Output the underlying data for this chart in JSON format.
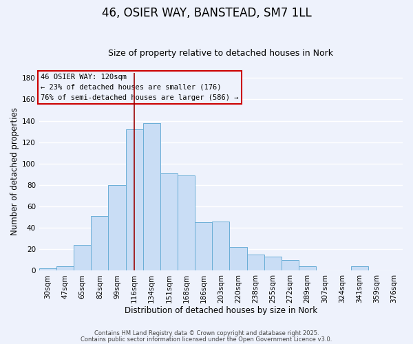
{
  "title": "46, OSIER WAY, BANSTEAD, SM7 1LL",
  "subtitle": "Size of property relative to detached houses in Nork",
  "xlabel": "Distribution of detached houses by size in Nork",
  "ylabel": "Number of detached properties",
  "bar_labels": [
    "30sqm",
    "47sqm",
    "65sqm",
    "82sqm",
    "99sqm",
    "116sqm",
    "134sqm",
    "151sqm",
    "168sqm",
    "186sqm",
    "203sqm",
    "220sqm",
    "238sqm",
    "255sqm",
    "272sqm",
    "289sqm",
    "307sqm",
    "324sqm",
    "341sqm",
    "359sqm",
    "376sqm"
  ],
  "bar_values": [
    2,
    4,
    24,
    51,
    80,
    132,
    138,
    91,
    89,
    45,
    46,
    22,
    15,
    13,
    10,
    4,
    0,
    0,
    4,
    0,
    0
  ],
  "bar_color": "#c9ddf5",
  "bar_edge_color": "#6aaed6",
  "ylim": [
    0,
    185
  ],
  "yticks": [
    0,
    20,
    40,
    60,
    80,
    100,
    120,
    140,
    160,
    180
  ],
  "vline_x_index": 5,
  "vline_color": "#990000",
  "annotation_title": "46 OSIER WAY: 120sqm",
  "annotation_line1": "← 23% of detached houses are smaller (176)",
  "annotation_line2": "76% of semi-detached houses are larger (586) →",
  "annotation_box_edge_color": "#cc0000",
  "footnote1": "Contains HM Land Registry data © Crown copyright and database right 2025.",
  "footnote2": "Contains public sector information licensed under the Open Government Licence v3.0.",
  "background_color": "#eef2fc",
  "grid_color": "#ffffff",
  "title_fontsize": 12,
  "subtitle_fontsize": 9,
  "ylabel_fontsize": 8.5,
  "xlabel_fontsize": 8.5,
  "tick_fontsize": 7.5,
  "annotation_fontsize": 7.5
}
